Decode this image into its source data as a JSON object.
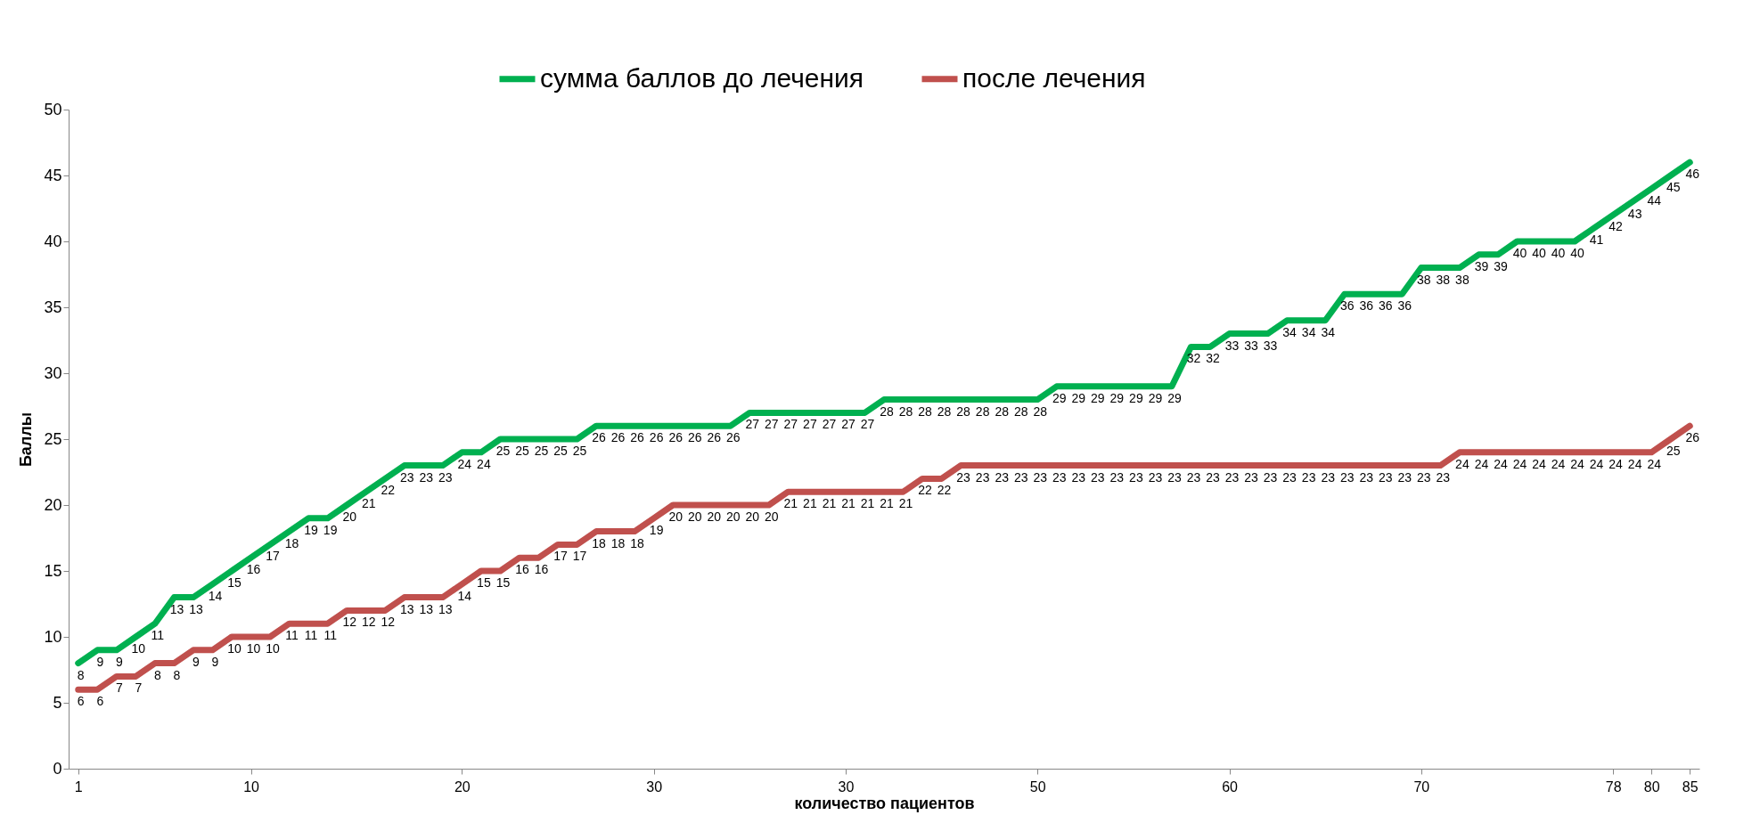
{
  "chart_data": {
    "type": "line",
    "xlabel": "количество пациентов",
    "ylabel": "Баллы",
    "categories": [
      "1",
      null,
      null,
      null,
      null,
      null,
      null,
      null,
      null,
      "10",
      null,
      null,
      null,
      null,
      null,
      null,
      null,
      null,
      null,
      null,
      "20",
      null,
      null,
      null,
      null,
      null,
      null,
      null,
      null,
      null,
      "30",
      null,
      null,
      null,
      null,
      null,
      null,
      null,
      null,
      null,
      "30",
      null,
      null,
      null,
      null,
      null,
      null,
      null,
      null,
      null,
      "50",
      null,
      null,
      null,
      null,
      null,
      null,
      null,
      null,
      null,
      "60",
      null,
      null,
      null,
      null,
      null,
      null,
      null,
      null,
      null,
      "70",
      null,
      null,
      null,
      null,
      null,
      null,
      null,
      null,
      null,
      "78",
      null,
      "80",
      null,
      "85"
    ],
    "series": [
      {
        "name": "сумма баллов до лечения",
        "color": "#00b050",
        "values": [
          8,
          9,
          9,
          10,
          11,
          13,
          13,
          14,
          15,
          16,
          17,
          18,
          19,
          19,
          20,
          21,
          22,
          23,
          23,
          23,
          24,
          24,
          25,
          25,
          25,
          25,
          25,
          26,
          26,
          26,
          26,
          26,
          26,
          26,
          26,
          27,
          27,
          27,
          27,
          27,
          27,
          27,
          28,
          28,
          28,
          28,
          28,
          28,
          28,
          28,
          28,
          29,
          29,
          29,
          29,
          29,
          29,
          29,
          32,
          32,
          33,
          33,
          33,
          34,
          34,
          34,
          36,
          36,
          36,
          36,
          38,
          38,
          38,
          39,
          39,
          40,
          40,
          40,
          40,
          41,
          42,
          43,
          44,
          45,
          46
        ]
      },
      {
        "name": "после лечения",
        "color": "#c0504d",
        "values": [
          6,
          6,
          7,
          7,
          8,
          8,
          9,
          9,
          10,
          10,
          10,
          11,
          11,
          11,
          12,
          12,
          12,
          13,
          13,
          13,
          14,
          15,
          15,
          16,
          16,
          17,
          17,
          18,
          18,
          18,
          19,
          20,
          20,
          20,
          20,
          20,
          20,
          21,
          21,
          21,
          21,
          21,
          21,
          21,
          22,
          22,
          23,
          23,
          23,
          23,
          23,
          23,
          23,
          23,
          23,
          23,
          23,
          23,
          23,
          23,
          23,
          23,
          23,
          23,
          23,
          23,
          23,
          23,
          23,
          23,
          23,
          23,
          24,
          24,
          24,
          24,
          24,
          24,
          24,
          24,
          24,
          24,
          24,
          25,
          26
        ]
      }
    ],
    "ylim": [
      0,
      50
    ],
    "yticks": [
      0,
      5,
      10,
      15,
      20,
      25,
      30,
      35,
      40,
      45,
      50
    ],
    "grid": false,
    "legend": "top",
    "marker": "none",
    "line_style": "solid",
    "data_labels": true
  }
}
